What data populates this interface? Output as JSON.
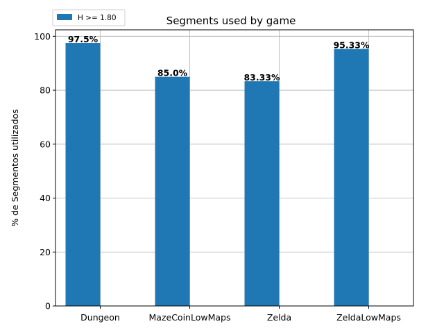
{
  "chart_data": {
    "type": "bar",
    "title": "Segments used by game",
    "xlabel": "",
    "ylabel": "% de Segmentos utilizados",
    "categories": [
      "Dungeon",
      "MazeCoinLowMaps",
      "Zelda",
      "ZeldaLowMaps"
    ],
    "series": [
      {
        "name": "H >= 1.80",
        "values": [
          97.5,
          85.0,
          83.33,
          95.33
        ],
        "labels": [
          "97.5%",
          "85.0%",
          "83.33%",
          "95.33%"
        ],
        "color": "#1f77b4"
      }
    ],
    "ylim": [
      0,
      102.4
    ],
    "yticks": [
      0,
      20,
      40,
      60,
      80,
      100
    ],
    "grid": true,
    "legend": "upper-left, outside plot area"
  }
}
